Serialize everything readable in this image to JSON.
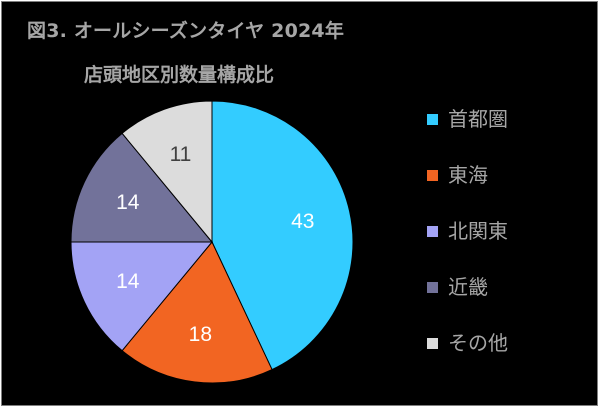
{
  "title": {
    "line1": "図3. オールシーズンタイヤ 2024年",
    "line2": "店頭地区別数量構成比"
  },
  "chart_data": {
    "type": "pie",
    "categories": [
      "首都圏",
      "東海",
      "北関東",
      "近畿",
      "その他"
    ],
    "values": [
      43,
      18,
      14,
      14,
      11
    ],
    "colors": [
      "#33ccff",
      "#f26522",
      "#a3a3f5",
      "#72729a",
      "#dcdcdc"
    ],
    "label_colors": [
      "#ffffff",
      "#ffffff",
      "#ffffff",
      "#ffffff",
      "#404040"
    ],
    "start_angle": "12 o'clock",
    "direction": "clockwise",
    "legend_position": "right"
  }
}
